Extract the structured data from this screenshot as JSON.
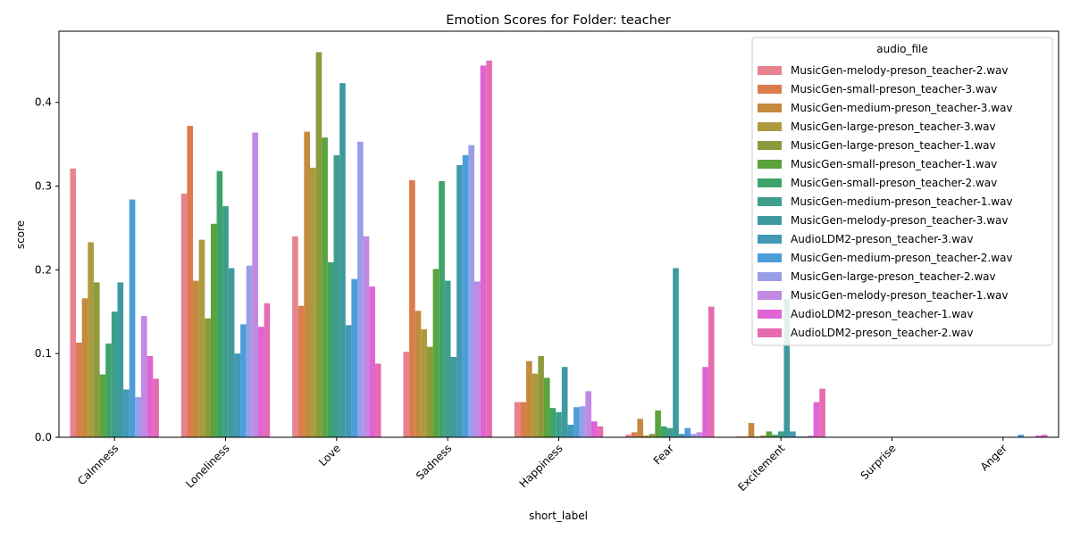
{
  "chart_data": {
    "type": "bar",
    "title": "Emotion Scores for Folder: teacher",
    "xlabel": "short_label",
    "ylabel": "score",
    "ylim": [
      0,
      0.485
    ],
    "yticks": [
      0.0,
      0.1,
      0.2,
      0.3,
      0.4
    ],
    "ytick_labels": [
      "0.0",
      "0.1",
      "0.2",
      "0.3",
      "0.4"
    ],
    "grid": false,
    "legend_title": "audio_file",
    "legend_position": "top-right",
    "categories": [
      "Calmness",
      "Loneliness",
      "Love",
      "Sadness",
      "Happiness",
      "Fear",
      "Excitement",
      "Surprise",
      "Anger"
    ],
    "series": [
      {
        "name": "MusicGen-melody-preson_teacher-2.wav",
        "color": "#e7838f",
        "values": [
          0.321,
          0.291,
          0.24,
          0.102,
          0.042,
          0.003,
          0.001,
          0.0,
          0.0
        ]
      },
      {
        "name": "MusicGen-small-preson_teacher-3.wav",
        "color": "#dc7c4b",
        "values": [
          0.113,
          0.372,
          0.157,
          0.307,
          0.042,
          0.006,
          0.001,
          0.0,
          0.0
        ]
      },
      {
        "name": "MusicGen-medium-preson_teacher-3.wav",
        "color": "#c48a3e",
        "values": [
          0.166,
          0.187,
          0.365,
          0.151,
          0.091,
          0.022,
          0.017,
          0.0,
          0.0
        ]
      },
      {
        "name": "MusicGen-large-preson_teacher-3.wav",
        "color": "#ac9a3e",
        "values": [
          0.233,
          0.236,
          0.322,
          0.129,
          0.076,
          0.002,
          0.001,
          0.0,
          0.0
        ]
      },
      {
        "name": "MusicGen-large-preson_teacher-1.wav",
        "color": "#8c9a3e",
        "values": [
          0.185,
          0.142,
          0.46,
          0.108,
          0.097,
          0.004,
          0.002,
          0.0,
          0.0
        ]
      },
      {
        "name": "MusicGen-small-preson_teacher-1.wav",
        "color": "#5ba33c",
        "values": [
          0.075,
          0.255,
          0.358,
          0.201,
          0.071,
          0.032,
          0.007,
          0.0,
          0.0
        ]
      },
      {
        "name": "MusicGen-small-preson_teacher-2.wav",
        "color": "#3da36a",
        "values": [
          0.112,
          0.318,
          0.209,
          0.306,
          0.035,
          0.013,
          0.003,
          0.0,
          0.0
        ]
      },
      {
        "name": "MusicGen-medium-preson_teacher-1.wav",
        "color": "#3e9e8b",
        "values": [
          0.15,
          0.276,
          0.337,
          0.187,
          0.03,
          0.011,
          0.007,
          0.0,
          0.0
        ]
      },
      {
        "name": "MusicGen-melody-preson_teacher-3.wav",
        "color": "#3f9aa0",
        "values": [
          0.185,
          0.202,
          0.423,
          0.096,
          0.084,
          0.202,
          0.165,
          0.0,
          0.0
        ]
      },
      {
        "name": "AudioLDM2-preson_teacher-3.wav",
        "color": "#4299b4",
        "values": [
          0.057,
          0.1,
          0.134,
          0.325,
          0.015,
          0.004,
          0.007,
          0.0,
          0.0
        ]
      },
      {
        "name": "MusicGen-medium-preson_teacher-2.wav",
        "color": "#4b9ed8",
        "values": [
          0.284,
          0.135,
          0.189,
          0.337,
          0.036,
          0.011,
          0.001,
          0.0,
          0.003
        ]
      },
      {
        "name": "MusicGen-large-preson_teacher-2.wav",
        "color": "#989ee8",
        "values": [
          0.048,
          0.205,
          0.353,
          0.349,
          0.037,
          0.004,
          0.001,
          0.0,
          0.0
        ]
      },
      {
        "name": "MusicGen-melody-preson_teacher-1.wav",
        "color": "#c289e3",
        "values": [
          0.145,
          0.364,
          0.24,
          0.186,
          0.055,
          0.006,
          0.002,
          0.0,
          0.0
        ]
      },
      {
        "name": "AudioLDM2-preson_teacher-1.wav",
        "color": "#e064d3",
        "values": [
          0.097,
          0.132,
          0.18,
          0.444,
          0.019,
          0.084,
          0.042,
          0.0,
          0.002
        ]
      },
      {
        "name": "AudioLDM2-preson_teacher-2.wav",
        "color": "#e66bb0",
        "values": [
          0.07,
          0.16,
          0.088,
          0.45,
          0.013,
          0.156,
          0.058,
          0.0,
          0.003
        ]
      }
    ]
  }
}
